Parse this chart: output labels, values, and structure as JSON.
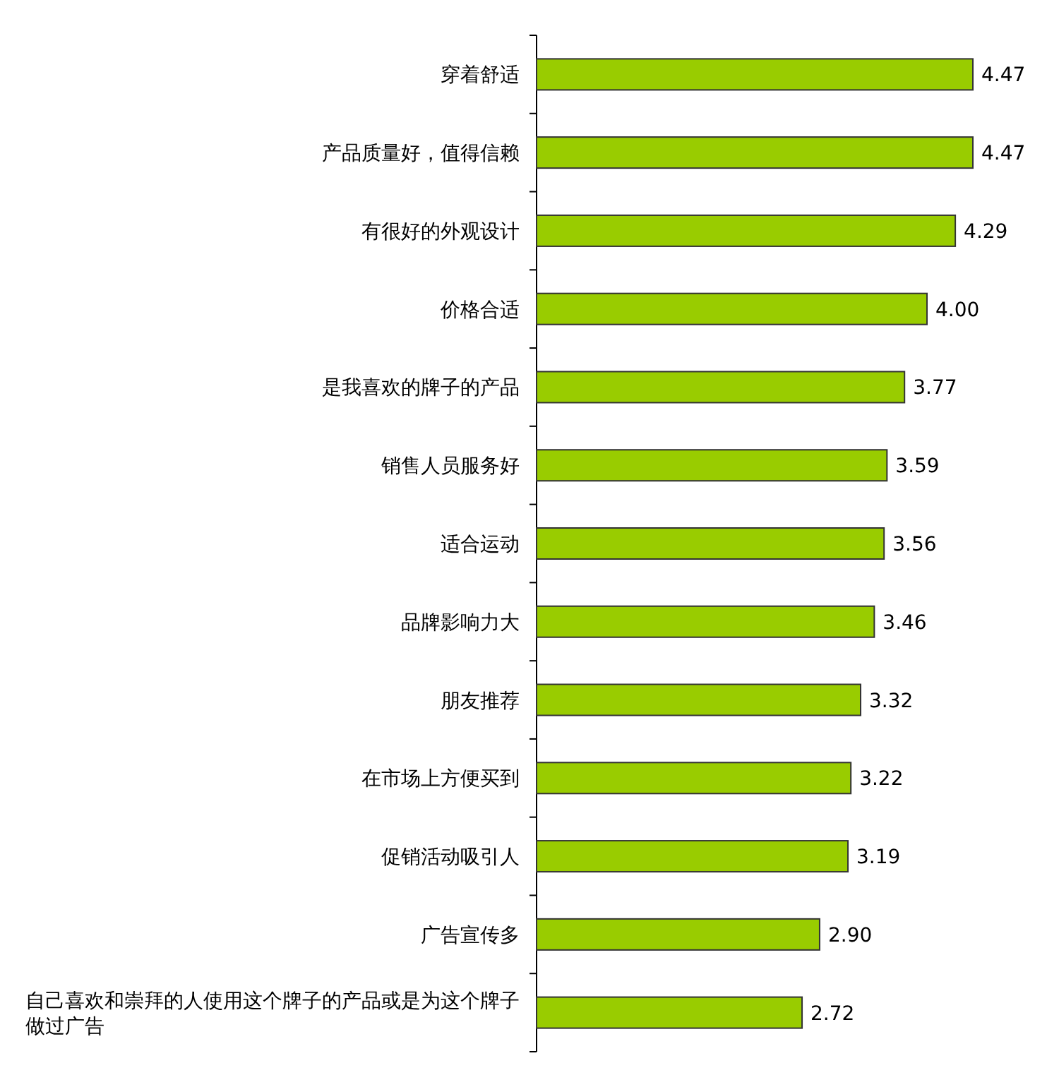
{
  "chart_data": {
    "type": "bar",
    "orientation": "horizontal",
    "color": "#99cc00",
    "categories": [
      "穿着舒适",
      "产品质量好，值得信赖",
      "有很好的外观设计",
      "价格合适",
      "是我喜欢的牌子的产品",
      "销售人员服务好",
      "适合运动",
      "品牌影响力大",
      "朋友推荐",
      "在市场上方便买到",
      "促销活动吸引人",
      "广告宣传多",
      "自己喜欢和崇拜的人使用这个牌子的产品或是为这个牌子做过广告"
    ],
    "values": [
      4.47,
      4.47,
      4.29,
      4.0,
      3.77,
      3.59,
      3.56,
      3.46,
      3.32,
      3.22,
      3.19,
      2.9,
      2.72
    ],
    "value_labels": [
      "4.47",
      "4.47",
      "4.29",
      "4.00",
      "3.77",
      "3.59",
      "3.56",
      "3.46",
      "3.32",
      "3.22",
      "3.19",
      "2.90",
      "2.72"
    ]
  }
}
